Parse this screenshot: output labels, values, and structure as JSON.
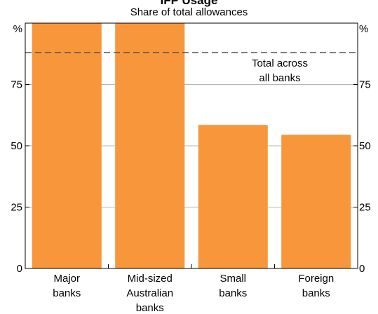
{
  "title": "IFP Usage",
  "subtitle": "Share of total allowances",
  "chart_data": {
    "type": "bar",
    "title": "IFP Usage",
    "subtitle": "Share of total allowances",
    "ylabel_left": "%",
    "ylabel_right": "%",
    "ylim": [
      0,
      100
    ],
    "yticks": [
      0,
      25,
      50,
      75
    ],
    "grid": true,
    "categories": [
      [
        "Major",
        "banks"
      ],
      [
        "Mid-sized",
        "Australian",
        "banks"
      ],
      [
        "Small",
        "banks"
      ],
      [
        "Foreign",
        "banks"
      ]
    ],
    "values": [
      100,
      100,
      58.5,
      54.5
    ],
    "bar_color": "#f7963a",
    "reference_line": {
      "value": 88,
      "style": "dashed",
      "label": [
        "Total across",
        "all banks"
      ]
    }
  }
}
